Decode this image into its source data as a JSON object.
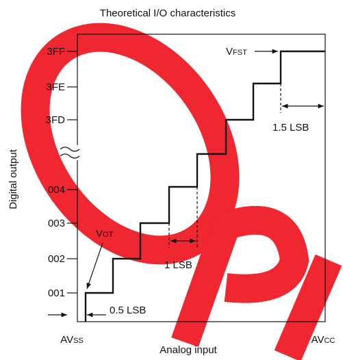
{
  "title": "Theoretical I/O characteristics",
  "y_axis": {
    "label": "Digital output",
    "ticks": [
      "3FF",
      "3FE",
      "3FD",
      "004",
      "003",
      "002",
      "001"
    ]
  },
  "x_axis": {
    "label": "Analog input",
    "start": {
      "main": "AV",
      "sub": "SS"
    },
    "end": {
      "main": "AV",
      "sub": "CC"
    }
  },
  "annotations": {
    "v_ot": {
      "main": "V",
      "sub": "OT"
    },
    "v_fst": {
      "main": "V",
      "sub": "FST"
    },
    "half_lsb": "0.5 LSB",
    "one_lsb": "1 LSB",
    "one_half_lsb": "1.5 LSB"
  }
}
